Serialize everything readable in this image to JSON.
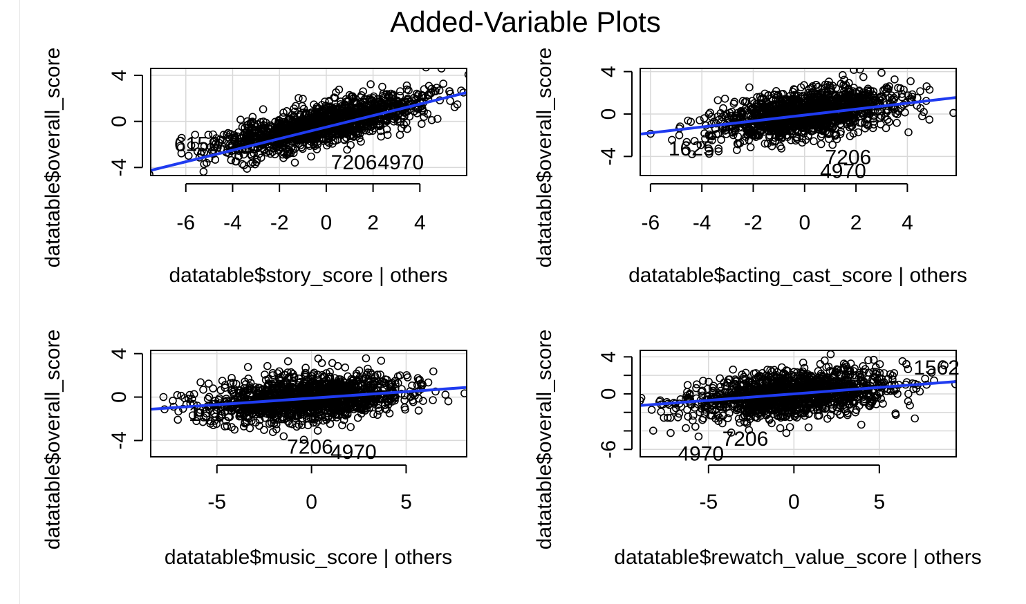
{
  "title": "Added-Variable Plots",
  "colors": {
    "fit_line": "#1f3bf0",
    "grid": "#d9d9d9",
    "points": "#000000"
  },
  "chart_data": [
    {
      "type": "scatter",
      "id": "story",
      "xlabel": "datatable$story_score | others",
      "ylabel": "datatable$overall_score",
      "xlim": [
        -7.5,
        6
      ],
      "ylim": [
        -4.7,
        4.6
      ],
      "xticks": [
        -6,
        -4,
        -2,
        0,
        2,
        4
      ],
      "yticks": [
        -4,
        0,
        4
      ],
      "grid": true,
      "cloud": {
        "cx": -0.3,
        "cy": -0.3,
        "sx": 2.2,
        "sy": 1.3,
        "rho": 0.75,
        "n": 1400,
        "seed": 11
      },
      "fit_line": {
        "intercept": -0.5,
        "slope": 0.5
      },
      "labeled_points": [
        {
          "label": "6150",
          "x": -6.5,
          "y": -1.9
        },
        {
          "label": "7206",
          "x": 0.2,
          "y": -3.5
        },
        {
          "label": "4970",
          "x": 2.2,
          "y": -3.5
        }
      ]
    },
    {
      "type": "scatter",
      "id": "acting_cast",
      "xlabel": "datatable$acting_cast_score | others",
      "ylabel": "datatable$overall_score",
      "xlim": [
        -6.4,
        5.9
      ],
      "ylim": [
        -5.8,
        4.3
      ],
      "xticks": [
        -6,
        -4,
        -2,
        0,
        2,
        4
      ],
      "yticks": [
        -4,
        0,
        4
      ],
      "grid": true,
      "cloud": {
        "cx": 0.0,
        "cy": 0.0,
        "sx": 1.7,
        "sy": 1.2,
        "rho": 0.45,
        "n": 1400,
        "seed": 23
      },
      "fit_line": {
        "intercept": -0.1,
        "slope": 0.28
      },
      "labeled_points": [
        {
          "label": "1625",
          "x": -5.3,
          "y": -3.2
        },
        {
          "label": "7206",
          "x": 0.8,
          "y": -4.0
        },
        {
          "label": "4970",
          "x": 0.6,
          "y": -5.3
        }
      ]
    },
    {
      "type": "scatter",
      "id": "music",
      "xlabel": "datatable$music_score | others",
      "ylabel": "datatable$overall_score",
      "xlim": [
        -8.5,
        8.2
      ],
      "ylim": [
        -5.5,
        4.3
      ],
      "xticks": [
        -5,
        0,
        5
      ],
      "yticks": [
        -4,
        0,
        4
      ],
      "grid": true,
      "cloud": {
        "cx": -0.3,
        "cy": -0.1,
        "sx": 2.6,
        "sy": 1.1,
        "rho": 0.3,
        "n": 1400,
        "seed": 37
      },
      "fit_line": {
        "intercept": -0.1,
        "slope": 0.12
      },
      "labeled_points": [
        {
          "label": "1613",
          "x": -6.5,
          "y": -1.5
        },
        {
          "label": "7206",
          "x": -1.3,
          "y": -4.5
        },
        {
          "label": "4970",
          "x": 1.0,
          "y": -5.0
        }
      ]
    },
    {
      "type": "scatter",
      "id": "rewatch_value",
      "xlabel": "datatable$rewatch_value_score | others",
      "ylabel": "datatable$overall_score",
      "xlim": [
        -9,
        9.5
      ],
      "ylim": [
        -6.8,
        4.7
      ],
      "xticks": [
        -5,
        0,
        5
      ],
      "yticks": [
        -6,
        -4,
        -2,
        0,
        2,
        4
      ],
      "ytick_labels_shown": [
        -6,
        0,
        4
      ],
      "grid": true,
      "cloud": {
        "cx": 0.0,
        "cy": 0.0,
        "sx": 2.9,
        "sy": 1.3,
        "rho": 0.35,
        "n": 1400,
        "seed": 53
      },
      "fit_line": {
        "intercept": 0.0,
        "slope": 0.14
      },
      "labeled_points": [
        {
          "label": "1562",
          "x": 7.0,
          "y": 2.9
        },
        {
          "label": "7206",
          "x": -4.2,
          "y": -4.8
        },
        {
          "label": "4970",
          "x": -6.8,
          "y": -6.4
        }
      ]
    }
  ]
}
